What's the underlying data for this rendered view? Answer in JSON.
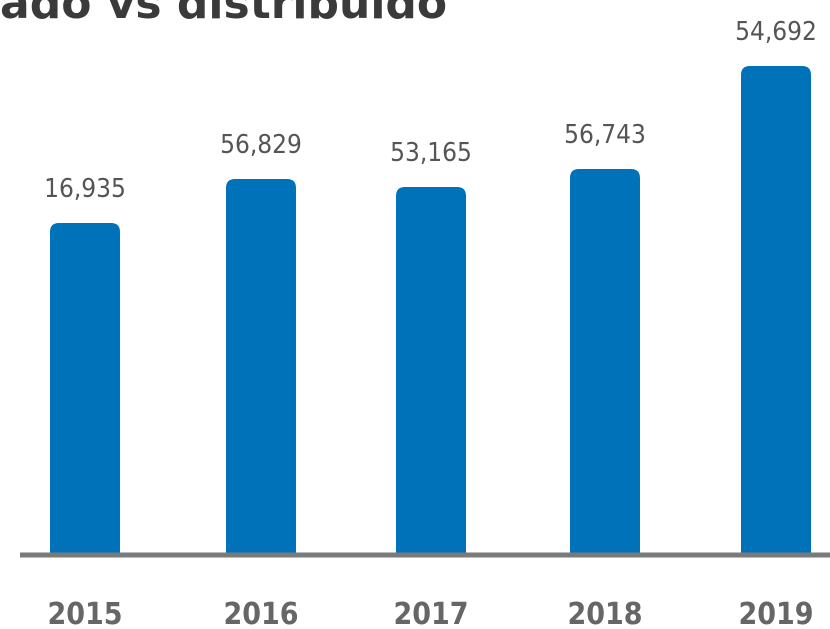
{
  "title": "ado vs distribuido",
  "colors": {
    "bar": "#0072ba",
    "axis": "#7a7a7a",
    "value_text": "#555555",
    "tick_text": "#666666"
  },
  "chart_data": {
    "type": "bar",
    "categories": [
      "2015",
      "2016",
      "2017",
      "2018",
      "2019"
    ],
    "values": [
      16935,
      56829,
      53165,
      56743,
      54692
    ],
    "value_labels": [
      "16,935",
      "56,829",
      "53,165",
      "56,743",
      "54,692"
    ],
    "value_axis_visible": false,
    "grid": false,
    "legend": "none"
  }
}
